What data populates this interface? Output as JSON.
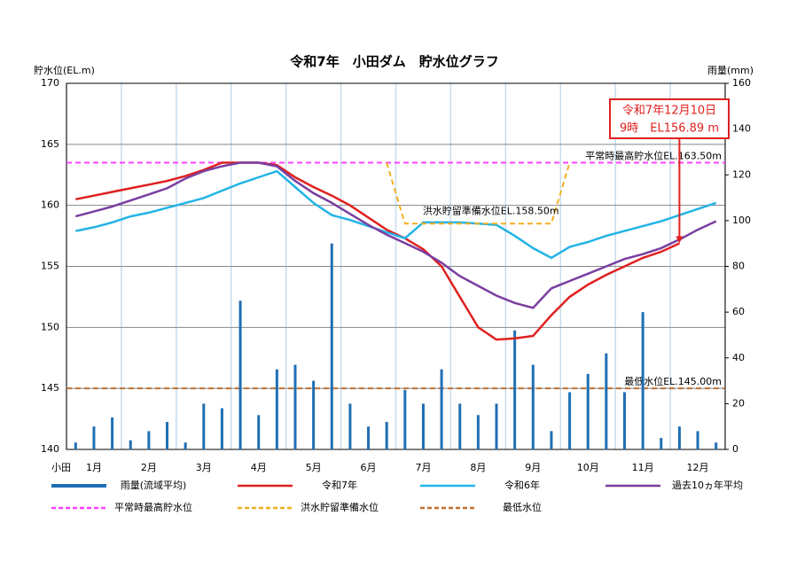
{
  "chart_data": {
    "type": "line",
    "title": "令和7年　小田ダム　貯水位グラフ",
    "ylabel": "貯水位(EL.m)",
    "y2label": "雨量(mm)",
    "xlabel": "小田",
    "categories": [
      null,
      "1月",
      null,
      null,
      "2月",
      null,
      null,
      "3月",
      null,
      null,
      "4月",
      null,
      null,
      "5月",
      null,
      null,
      "6月",
      null,
      null,
      "7月",
      null,
      null,
      "8月",
      null,
      null,
      "9月",
      null,
      null,
      "10月",
      null,
      null,
      "11月",
      null,
      null,
      "12月",
      null
    ],
    "ylim": [
      140,
      170
    ],
    "yticks": [
      140,
      145,
      150,
      155,
      160,
      165,
      170
    ],
    "y2lim": [
      0,
      160
    ],
    "y2ticks": [
      0,
      20,
      40,
      60,
      80,
      100,
      120,
      140,
      160
    ],
    "grid": true,
    "series": [
      {
        "name": "雨量(流域平均)",
        "type": "bar",
        "axis": "y2",
        "color": "#1f6fb4",
        "values": [
          3,
          10,
          14,
          4,
          8,
          12,
          3,
          20,
          18,
          65,
          15,
          35,
          37,
          30,
          90,
          20,
          10,
          12,
          26,
          20,
          35,
          20,
          15,
          20,
          52,
          37,
          8,
          25,
          33,
          42,
          25,
          60,
          5,
          10,
          8,
          3
        ]
      },
      {
        "name": "令和7年",
        "color": "#e02020",
        "values": [
          160.5,
          160.8,
          161.1,
          161.4,
          161.7,
          162.0,
          162.4,
          162.9,
          163.5,
          163.5,
          163.5,
          163.3,
          162.3,
          161.5,
          160.8,
          160.0,
          159.0,
          158.0,
          157.3,
          156.4,
          155.0,
          152.5,
          150.0,
          149.0,
          149.1,
          149.3,
          151.0,
          152.5,
          153.5,
          154.3,
          155.0,
          155.7,
          156.2,
          156.89,
          null,
          null
        ]
      },
      {
        "name": "令和6年",
        "color": "#22b4e6",
        "values": [
          157.9,
          158.2,
          158.6,
          159.1,
          159.4,
          159.8,
          160.2,
          160.6,
          161.2,
          161.8,
          162.3,
          162.8,
          161.5,
          160.2,
          159.2,
          158.8,
          158.3,
          157.8,
          157.3,
          158.6,
          158.6,
          158.6,
          158.5,
          158.4,
          157.5,
          156.5,
          155.7,
          156.6,
          157.0,
          157.5,
          157.9,
          158.3,
          158.7,
          159.2,
          159.7,
          160.2
        ]
      },
      {
        "name": "過去10ヵ年平均",
        "color": "#7a3ea0",
        "values": [
          159.1,
          159.5,
          159.9,
          160.4,
          160.9,
          161.4,
          162.2,
          162.8,
          163.2,
          163.5,
          163.5,
          163.2,
          162.0,
          161.0,
          160.2,
          159.3,
          158.4,
          157.6,
          156.9,
          156.2,
          155.3,
          154.2,
          153.4,
          152.6,
          152.0,
          151.6,
          153.2,
          153.8,
          154.4,
          155.0,
          155.6,
          156.0,
          156.5,
          157.2,
          158.0,
          158.7
        ]
      },
      {
        "name": "洪水貯留準備水位",
        "color": "#f0b020",
        "dash": true,
        "label": "洪水貯留準備水位EL.158.50m",
        "values": [
          null,
          null,
          null,
          null,
          null,
          null,
          null,
          null,
          null,
          null,
          null,
          null,
          null,
          null,
          null,
          null,
          null,
          163.5,
          158.5,
          158.5,
          158.5,
          158.5,
          158.5,
          158.5,
          158.5,
          158.5,
          158.5,
          163.5,
          null,
          null,
          null,
          null,
          null,
          null,
          null,
          null
        ]
      }
    ],
    "reference_lines": [
      {
        "name": "平常時最高貯水位",
        "value": 163.5,
        "color": "#ff40ff",
        "label": "平常時最高貯水位EL.163.50m"
      },
      {
        "name": "最低水位",
        "value": 145.0,
        "color": "#c07030",
        "label": "最低水位EL.145.00m"
      }
    ],
    "annotation": [
      "令和7年12月10日",
      "9時　EL156.89 m"
    ]
  }
}
